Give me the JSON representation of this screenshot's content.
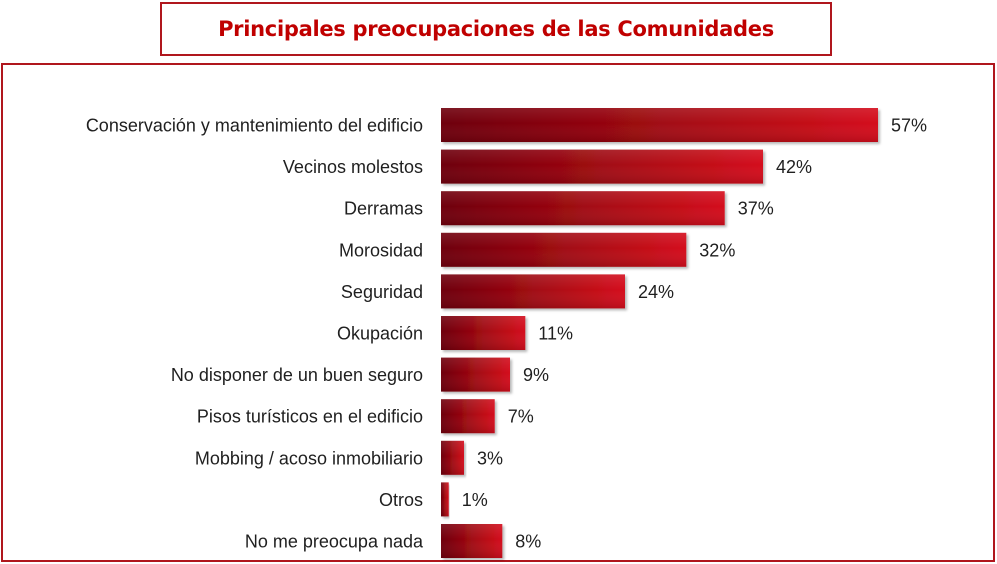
{
  "chart_data": {
    "type": "bar",
    "orientation": "horizontal",
    "title": "Principales preocupaciones de las Comunidades",
    "categories": [
      "Conservación y mantenimiento del edificio",
      "Vecinos molestos",
      "Derramas",
      "Morosidad",
      "Seguridad",
      "Okupación",
      "No disponer de un buen seguro",
      "Pisos turísticos en el edificio",
      "Mobbing / acoso inmobiliario",
      "Otros",
      "No me preocupa nada"
    ],
    "values": [
      57,
      42,
      37,
      32,
      24,
      11,
      9,
      7,
      3,
      1,
      8
    ],
    "value_labels": [
      "57%",
      "42%",
      "37%",
      "32%",
      "24%",
      "11%",
      "9%",
      "7%",
      "3%",
      "1%",
      "8%"
    ],
    "unit": "%",
    "xlim": [
      0,
      60
    ],
    "grid": false,
    "legend": "none",
    "colors": {
      "bar_dark": "#6e0008",
      "bar_light": "#d4101c",
      "frame": "#b0161d",
      "title": "#c00000",
      "text": "#1f1f1f"
    }
  }
}
